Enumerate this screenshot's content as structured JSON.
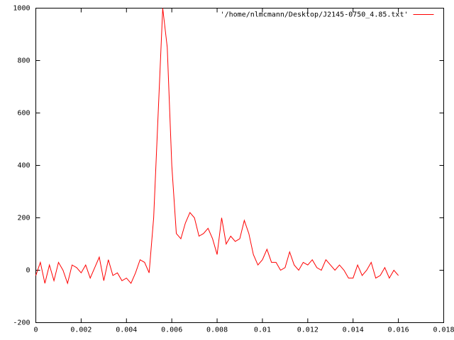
{
  "chart_data": {
    "type": "line",
    "x": [
      0,
      0.0002,
      0.0004,
      0.0006,
      0.0008,
      0.001,
      0.0012,
      0.0014,
      0.0016,
      0.0018,
      0.002,
      0.0022,
      0.0024,
      0.0026,
      0.0028,
      0.003,
      0.0032,
      0.0034,
      0.0036,
      0.0038,
      0.004,
      0.0042,
      0.0044,
      0.0046,
      0.0048,
      0.005,
      0.0052,
      0.0054,
      0.0056,
      0.0058,
      0.006,
      0.0062,
      0.0064,
      0.0066,
      0.0068,
      0.007,
      0.0072,
      0.0074,
      0.0076,
      0.0078,
      0.008,
      0.0082,
      0.0084,
      0.0086,
      0.0088,
      0.009,
      0.0092,
      0.0094,
      0.0096,
      0.0098,
      0.01,
      0.0102,
      0.0104,
      0.0106,
      0.0108,
      0.011,
      0.0112,
      0.0114,
      0.0116,
      0.0118,
      0.012,
      0.0122,
      0.0124,
      0.0126,
      0.0128,
      0.013,
      0.0132,
      0.0134,
      0.0136,
      0.0138,
      0.014,
      0.0142,
      0.0144,
      0.0146,
      0.0148,
      0.015,
      0.0152,
      0.0154,
      0.0156,
      0.0158,
      0.016
    ],
    "series": [
      {
        "name": "'/home/nlmcmann/Desktop/J2145-0750_4.85.txt'",
        "color": "#ff0000",
        "values": [
          -20,
          30,
          -50,
          20,
          -40,
          30,
          0,
          -50,
          20,
          10,
          -10,
          20,
          -30,
          10,
          50,
          -40,
          40,
          -20,
          -10,
          -40,
          -30,
          -50,
          -10,
          40,
          30,
          -10,
          200,
          600,
          1000,
          850,
          400,
          140,
          120,
          180,
          220,
          200,
          130,
          140,
          160,
          120,
          60,
          200,
          100,
          130,
          110,
          120,
          190,
          140,
          60,
          20,
          40,
          80,
          30,
          30,
          0,
          10,
          70,
          20,
          0,
          30,
          20,
          40,
          10,
          0,
          40,
          20,
          0,
          20,
          0,
          -30,
          -30,
          20,
          -20,
          0,
          30,
          -30,
          -20,
          10,
          -30,
          0,
          -20
        ]
      }
    ],
    "xlim": [
      0,
      0.018
    ],
    "xticks": [
      0,
      0.002,
      0.004,
      0.006,
      0.008,
      0.01,
      0.012,
      0.014,
      0.016,
      0.018
    ],
    "ylim": [
      -200,
      1000
    ],
    "yticks": [
      -200,
      0,
      200,
      400,
      600,
      800,
      1000
    ],
    "grid": false,
    "legend": "top-right"
  }
}
